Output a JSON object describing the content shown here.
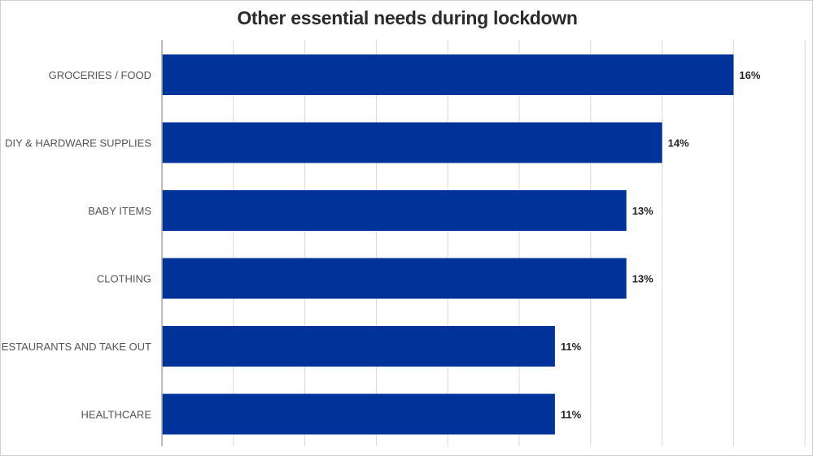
{
  "chart_data": {
    "type": "bar",
    "orientation": "horizontal",
    "title": "Other essential needs during lockdown",
    "categories": [
      "GROCERIES / FOOD",
      "DIY & HARDWARE SUPPLIES",
      "BABY ITEMS",
      "CLOTHING",
      "RESTAURANTS AND TAKE OUT",
      "HEALTHCARE"
    ],
    "values": [
      16,
      14,
      13,
      13,
      11,
      11
    ],
    "value_labels": [
      "16%",
      "14%",
      "13%",
      "13%",
      "11%",
      "11%"
    ],
    "xlim": [
      0,
      18
    ],
    "grid": true,
    "legend": "none",
    "bar_color": "#003399",
    "grid_color": "#d9d9d9",
    "axis_color": "#a6a6a6"
  }
}
